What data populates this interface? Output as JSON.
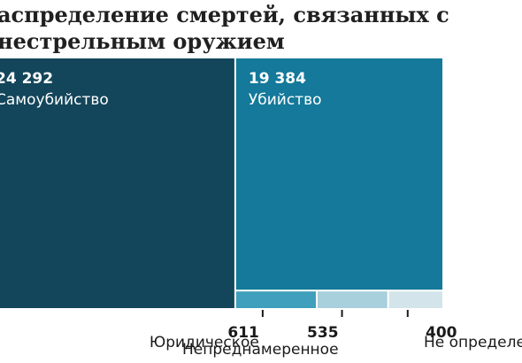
{
  "title_lines": [
    "аспределение смертей, связанных с",
    "нестрельным оружием"
  ],
  "chart_data": {
    "type": "treemap",
    "title": "аспределение смертей, связанных с нестрельным оружием",
    "unit": "",
    "items": [
      {
        "label": "Самоубийство",
        "value": 24292,
        "display": "24 292",
        "color": "#13465a"
      },
      {
        "label": "Убийство",
        "value": 19384,
        "display": "19 384",
        "color": "#14799a"
      },
      {
        "label": "Юридическое",
        "value": 611,
        "display": "611",
        "color": "#3f9fbc"
      },
      {
        "label": "Непреднамеренное",
        "value": 535,
        "display": "535",
        "color": "#a8cfdc"
      },
      {
        "label": "Не определе",
        "value": 400,
        "display": "400",
        "color": "#d3e5eb"
      }
    ]
  }
}
